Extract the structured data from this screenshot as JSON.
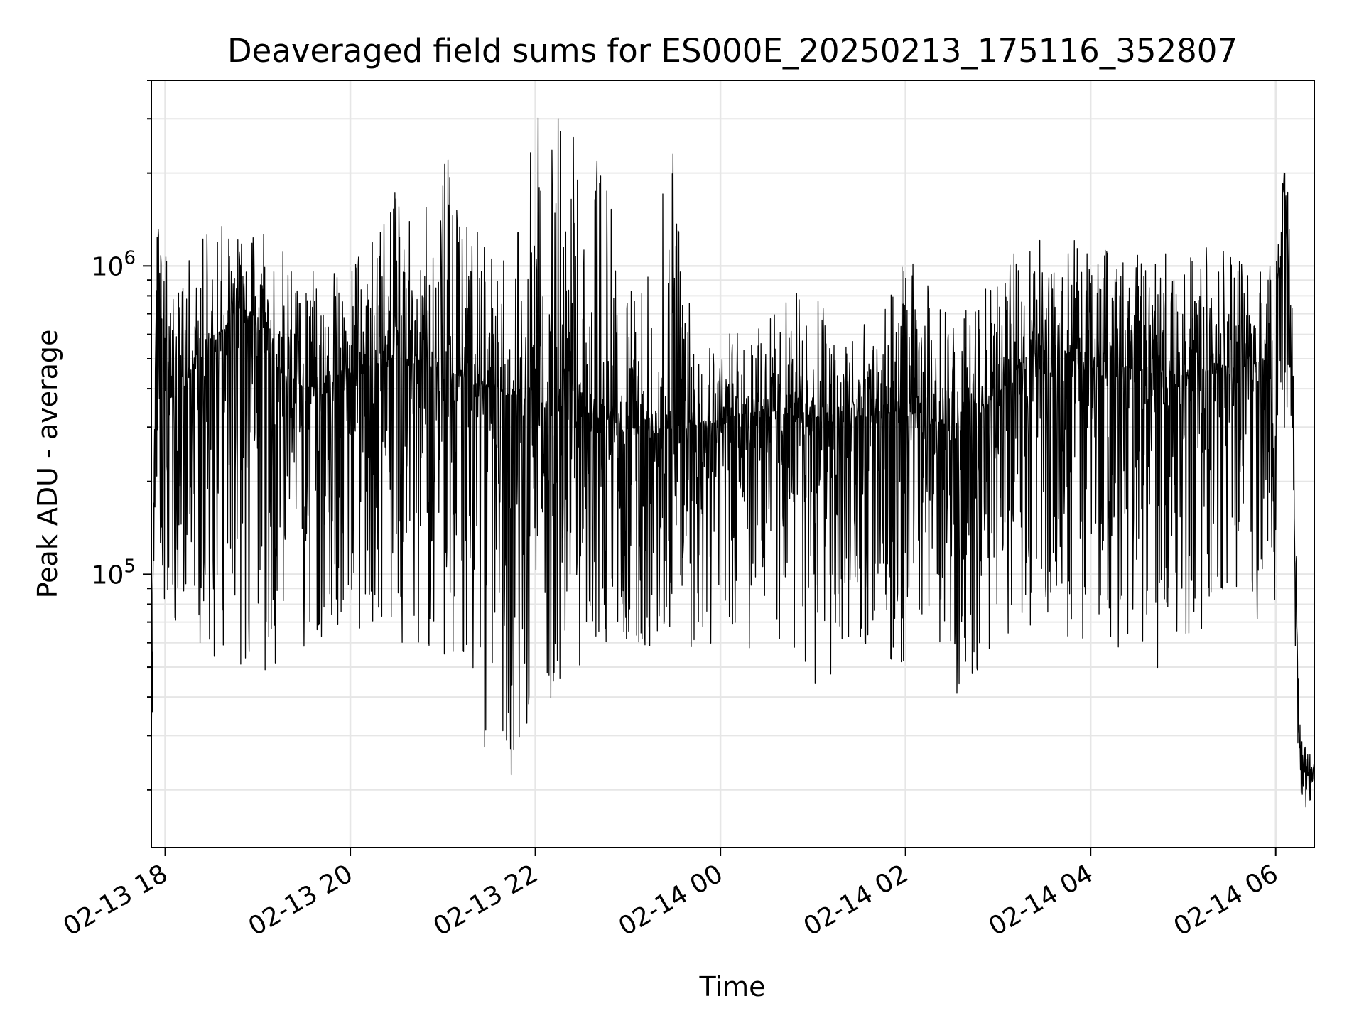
{
  "chart_data": {
    "type": "line",
    "title": "Deaveraged field sums for ES000E_20250213_175116_352807",
    "xlabel": "Time",
    "ylabel": "Peak ADU - average",
    "yscale": "log",
    "grid": true,
    "x_tick_labels": [
      "02-13 18",
      "02-13 20",
      "02-13 22",
      "02-14 00",
      "02-14 02",
      "02-14 04",
      "02-14 06"
    ],
    "y_tick_labels": [
      {
        "base": "10",
        "exp": "5"
      },
      {
        "base": "10",
        "exp": "6"
      }
    ],
    "x_range": [
      "2025-02-13 17:51",
      "2025-02-14 06:25"
    ],
    "ylim": [
      13000,
      4000000
    ],
    "line_color": "#000000",
    "series": [
      {
        "x": [
          "2025-02-13 17:51",
          "2025-02-13 17:52",
          "2025-02-13 17:55",
          "2025-02-13 17:59",
          "2025-02-13 18:05",
          "2025-02-13 18:15",
          "2025-02-13 18:30",
          "2025-02-13 18:45",
          "2025-02-13 19:00",
          "2025-02-13 19:15",
          "2025-02-13 19:30",
          "2025-02-13 19:45",
          "2025-02-13 20:00",
          "2025-02-13 20:15",
          "2025-02-13 20:30",
          "2025-02-13 20:45",
          "2025-02-13 21:00",
          "2025-02-13 21:15",
          "2025-02-13 21:30",
          "2025-02-13 21:45",
          "2025-02-13 22:00",
          "2025-02-13 22:15",
          "2025-02-13 22:30",
          "2025-02-13 22:45",
          "2025-02-13 23:00",
          "2025-02-13 23:15",
          "2025-02-13 23:30",
          "2025-02-13 23:45",
          "2025-02-14 00:00",
          "2025-02-14 00:15",
          "2025-02-14 00:30",
          "2025-02-14 00:45",
          "2025-02-14 01:00",
          "2025-02-14 01:15",
          "2025-02-14 01:30",
          "2025-02-14 01:45",
          "2025-02-14 02:00",
          "2025-02-14 02:15",
          "2025-02-14 02:30",
          "2025-02-14 02:45",
          "2025-02-14 03:00",
          "2025-02-14 03:15",
          "2025-02-14 03:30",
          "2025-02-14 03:45",
          "2025-02-14 04:00",
          "2025-02-14 04:15",
          "2025-02-14 04:30",
          "2025-02-14 04:45",
          "2025-02-14 05:00",
          "2025-02-14 05:15",
          "2025-02-14 05:30",
          "2025-02-14 05:45",
          "2025-02-14 06:00",
          "2025-02-14 06:05",
          "2025-02-14 06:10",
          "2025-02-14 06:15",
          "2025-02-14 06:20",
          "2025-02-14 06:25"
        ],
        "y": [
          25000,
          120000,
          1500000,
          500000,
          400000,
          450000,
          550000,
          700000,
          600000,
          450000,
          400000,
          420000,
          450000,
          480000,
          500000,
          480000,
          460000,
          430000,
          400000,
          380000,
          360000,
          350000,
          340000,
          320000,
          300000,
          290000,
          300000,
          310000,
          320000,
          330000,
          340000,
          330000,
          320000,
          310000,
          320000,
          330000,
          340000,
          320000,
          300000,
          320000,
          380000,
          480000,
          550000,
          520000,
          500000,
          480000,
          460000,
          450000,
          440000,
          450000,
          470000,
          480000,
          500000,
          1800000,
          700000,
          30000,
          22000,
          25000
        ],
        "y_min": [
          25000,
          40000,
          100000,
          80000,
          70000,
          60000,
          50000,
          40000,
          45000,
          50000,
          55000,
          60000,
          60000,
          70000,
          60000,
          60000,
          50000,
          40000,
          25000,
          22000,
          30000,
          40000,
          50000,
          55000,
          60000,
          55000,
          60000,
          55000,
          60000,
          55000,
          50000,
          55000,
          40000,
          50000,
          55000,
          50000,
          45000,
          55000,
          40000,
          45000,
          60000,
          65000,
          70000,
          60000,
          55000,
          60000,
          50000,
          45000,
          60000,
          65000,
          70000,
          60000,
          70000,
          300000,
          200000,
          20000,
          17000,
          20000
        ],
        "y_max": [
          35000,
          120000,
          1500000,
          1200000,
          1000000,
          1100000,
          1350000,
          1400000,
          1300000,
          1200000,
          1000000,
          900000,
          1100000,
          1200000,
          2000000,
          1300000,
          2500000,
          1600000,
          1100000,
          1100000,
          3100000,
          3200000,
          2600000,
          2400000,
          800000,
          1100000,
          2800000,
          700000,
          650000,
          600000,
          700000,
          800000,
          900000,
          700000,
          650000,
          700000,
          1100000,
          900000,
          700000,
          800000,
          900000,
          1200000,
          1400000,
          1300000,
          1200000,
          1100000,
          1100000,
          1200000,
          1100000,
          1200000,
          1300000,
          1200000,
          1100000,
          2500000,
          1800000,
          40000,
          28000,
          30000
        ]
      }
    ]
  }
}
